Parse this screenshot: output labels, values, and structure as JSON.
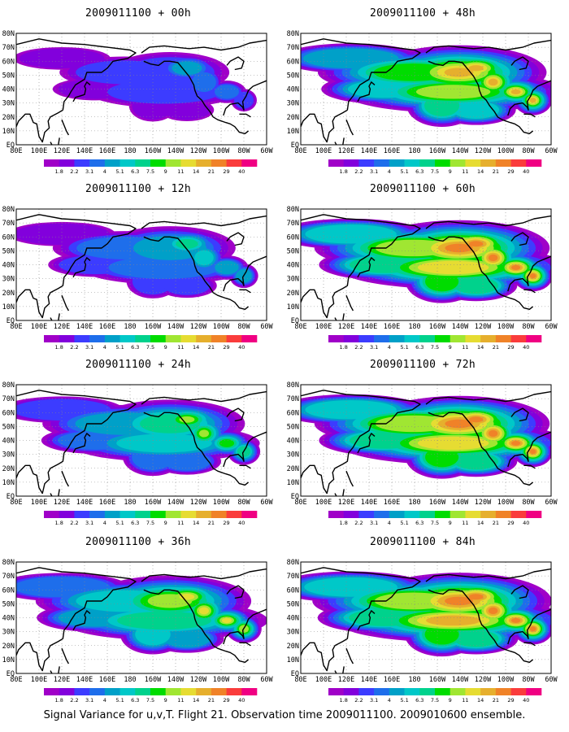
{
  "panels": [
    {
      "title": "2009011100 + 00h"
    },
    {
      "title": "2009011100 + 48h"
    },
    {
      "title": "2009011100 + 12h"
    },
    {
      "title": "2009011100 + 60h"
    },
    {
      "title": "2009011100 + 24h"
    },
    {
      "title": "2009011100 + 72h"
    },
    {
      "title": "2009011100 + 36h"
    },
    {
      "title": "2009011100 + 84h"
    }
  ],
  "map": {
    "lon_labels": [
      "80E",
      "100E",
      "120E",
      "140E",
      "160E",
      "180",
      "160W",
      "140W",
      "120W",
      "100W",
      "80W",
      "60W"
    ],
    "lat_labels": [
      "80N",
      "70N",
      "60N",
      "50N",
      "40N",
      "30N",
      "20N",
      "10N",
      "EQ"
    ]
  },
  "colorbar": {
    "labels": [
      "1.8",
      "2.2",
      "3.1",
      "4",
      "5.1",
      "6.3",
      "7.5",
      "9",
      "11",
      "14",
      "21",
      "29",
      "40"
    ],
    "colors": [
      "#a000c8",
      "#8200dc",
      "#3c3cff",
      "#1e6eeb",
      "#00a0c8",
      "#00c8c8",
      "#00d28c",
      "#00dc00",
      "#a0e632",
      "#e6dc32",
      "#e6af2d",
      "#f08228",
      "#fa3c3c",
      "#f00082"
    ]
  },
  "footer": "Signal Variance for u,v,T. Flight 21. Observation time 2009011100. 2009010600 ensemble."
}
